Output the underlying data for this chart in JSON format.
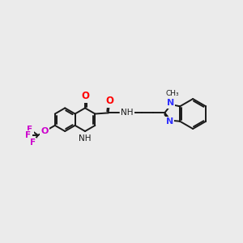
{
  "bg": "#ebebeb",
  "bond_color": "#1a1a1a",
  "lw": 1.4,
  "figsize": [
    3.0,
    3.0
  ],
  "dpi": 100,
  "xlim": [
    -1.5,
    11.5
  ],
  "ylim": [
    1.5,
    8.0
  ],
  "colors": {
    "O": "#ff0000",
    "N_blue": "#3333ff",
    "N_black": "#1a1a1a",
    "F": "#cc00cc",
    "O_cf3": "#cc00cc",
    "C": "#1a1a1a"
  }
}
